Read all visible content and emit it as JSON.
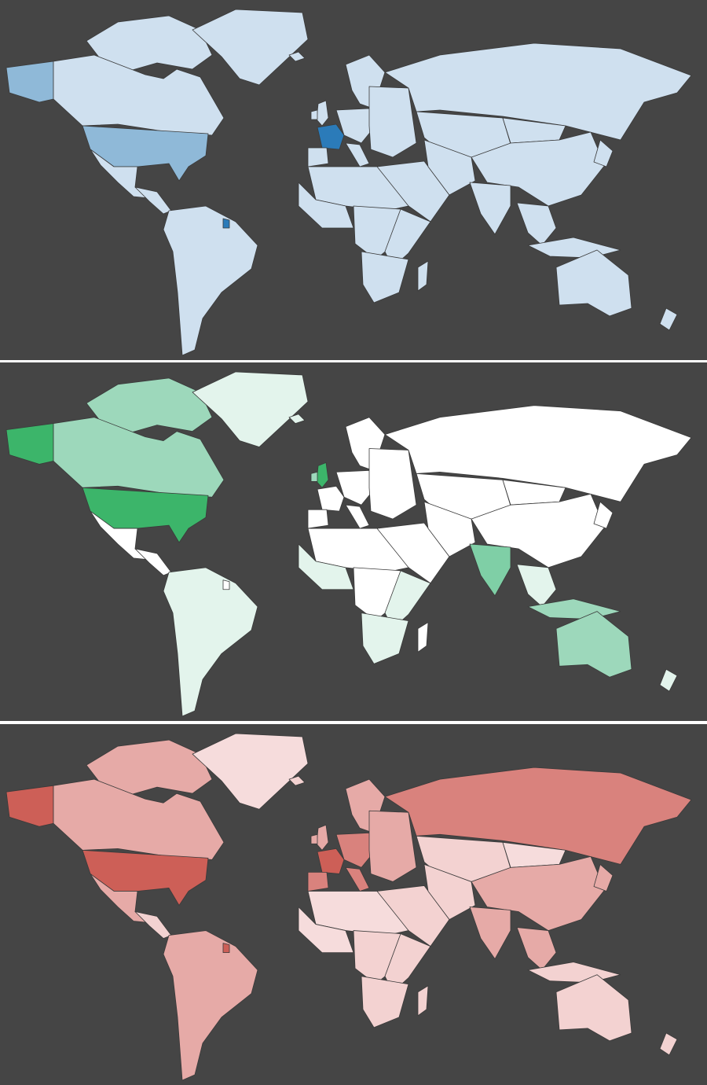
{
  "maps": [
    {
      "id": "blue",
      "palette": {
        "none": "#d4e4f1",
        "low": "#cfe0ef",
        "mid": "#8fb9d8",
        "high": "#2b7bb9"
      },
      "values": {
        "greenland": "low",
        "canada": "low",
        "alaska": "mid",
        "usa": "mid",
        "mexico": "low",
        "central_america": "low",
        "south_america": "low",
        "french_guiana": "high",
        "iceland": "low",
        "uk": "low",
        "ireland": "low",
        "france": "high",
        "iberia": "low",
        "scandinavia": "low",
        "europe_central": "low",
        "eastern_europe": "low",
        "italy": "low",
        "russia": "low",
        "central_asia": "low",
        "mongolia": "low",
        "china": "low",
        "middle_east": "low",
        "iran_afg": "low",
        "india": "low",
        "southeast_asia": "low",
        "indonesia": "low",
        "japan": "low",
        "australia": "low",
        "new_zealand": "low",
        "north_africa": "low",
        "west_africa": "low",
        "central_africa": "low",
        "east_africa": "low",
        "southern_africa": "low",
        "madagascar": "low",
        "arctic_islands": "low"
      }
    },
    {
      "id": "green",
      "palette": {
        "none": "#ffffff",
        "low": "#e3f4ec",
        "mid": "#9dd8bb",
        "mid2": "#7fcfa6",
        "high": "#3cb56a"
      },
      "values": {
        "greenland": "low",
        "canada": "mid",
        "alaska": "high",
        "usa": "high",
        "mexico": "none",
        "central_america": "none",
        "south_america": "low",
        "french_guiana": "none",
        "iceland": "low",
        "uk": "high",
        "ireland": "mid",
        "france": "none",
        "iberia": "none",
        "scandinavia": "none",
        "europe_central": "none",
        "eastern_europe": "none",
        "italy": "none",
        "russia": "none",
        "central_asia": "none",
        "mongolia": "none",
        "china": "none",
        "middle_east": "none",
        "iran_afg": "none",
        "india": "mid2",
        "southeast_asia": "low",
        "indonesia": "mid",
        "japan": "none",
        "australia": "mid",
        "new_zealand": "low",
        "north_africa": "none",
        "west_africa": "low",
        "central_africa": "none",
        "east_africa": "low",
        "southern_africa": "low",
        "madagascar": "none",
        "arctic_islands": "mid"
      }
    },
    {
      "id": "red",
      "palette": {
        "none": "#f6dcdc",
        "low": "#f3d2d1",
        "mid": "#e6aaa7",
        "mid2": "#d9827d",
        "high": "#cd5f57"
      },
      "values": {
        "greenland": "none",
        "canada": "mid",
        "alaska": "high",
        "usa": "high",
        "mexico": "mid",
        "central_america": "low",
        "south_america": "mid",
        "french_guiana": "high",
        "iceland": "low",
        "uk": "mid",
        "ireland": "mid",
        "france": "high",
        "iberia": "mid2",
        "scandinavia": "mid",
        "europe_central": "mid2",
        "eastern_europe": "mid",
        "italy": "mid2",
        "russia": "mid2",
        "central_asia": "low",
        "mongolia": "none",
        "china": "mid",
        "middle_east": "low",
        "iran_afg": "low",
        "india": "mid",
        "southeast_asia": "mid",
        "indonesia": "low",
        "japan": "mid",
        "australia": "low",
        "new_zealand": "low",
        "north_africa": "none",
        "west_africa": "none",
        "central_africa": "low",
        "east_africa": "low",
        "southern_africa": "low",
        "madagascar": "low",
        "arctic_islands": "mid"
      }
    }
  ]
}
